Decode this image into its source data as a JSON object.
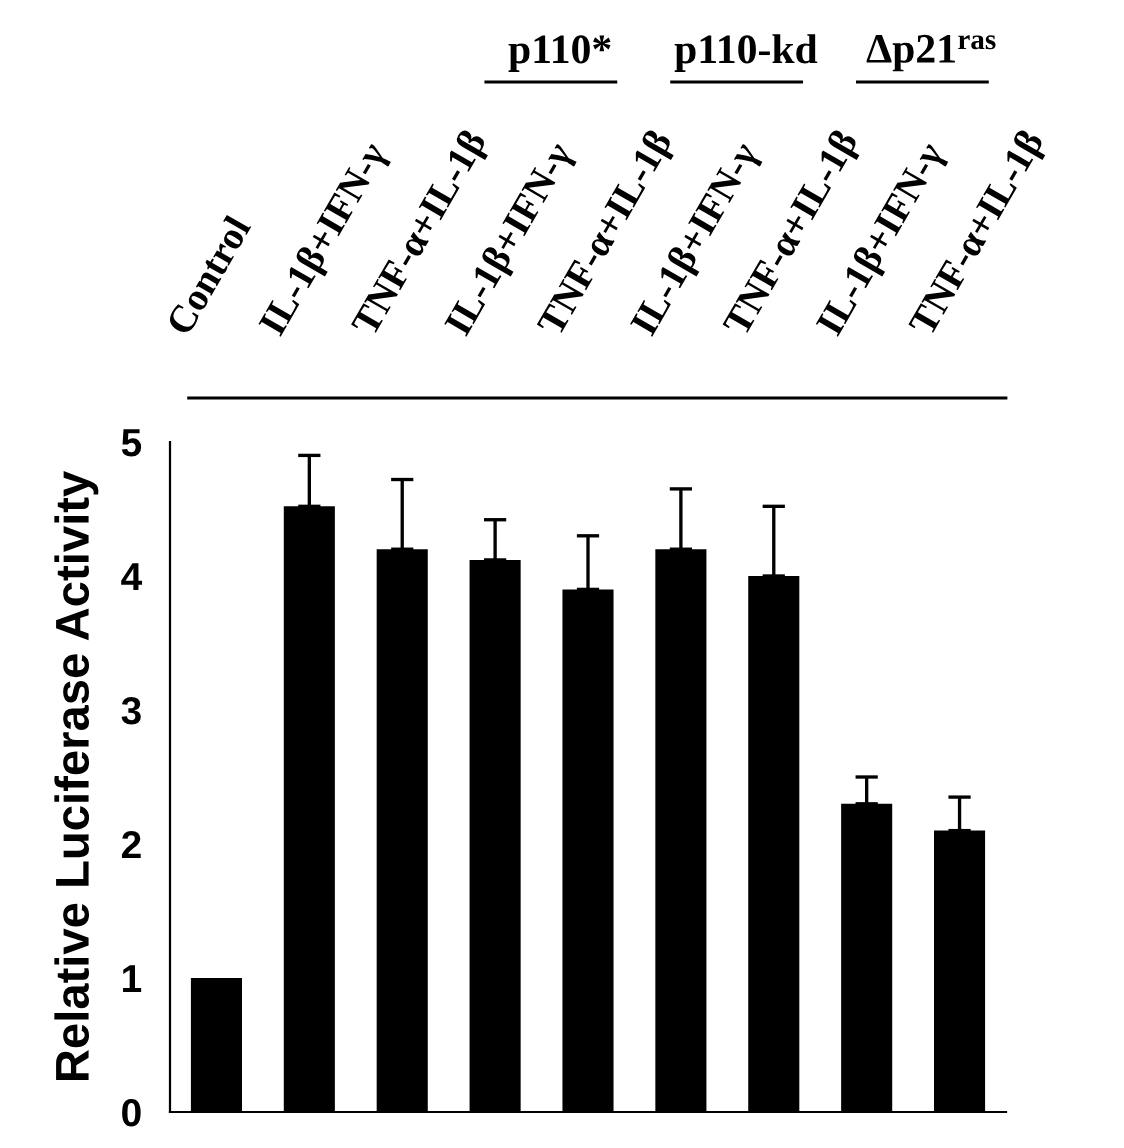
{
  "chart_data": {
    "type": "bar",
    "ylabel": "Relative Luciferase Activity",
    "categories": [
      "Control",
      "IL-1β+IFN-γ",
      "TNF-α+IL-1β",
      "IL-1β+IFN-γ",
      "TNF-α+IL-1β",
      "IL-1β+IFN-γ",
      "TNF-α+IL-1β",
      "IL-1β+IFN-γ",
      "TNF-α+IL-1β"
    ],
    "values": [
      1.0,
      4.52,
      4.2,
      4.12,
      3.9,
      4.2,
      4.0,
      2.3,
      2.1
    ],
    "errors": [
      null,
      [
        4.52,
        4.9
      ],
      [
        4.2,
        4.72
      ],
      [
        4.12,
        4.42
      ],
      [
        3.9,
        4.3
      ],
      [
        4.2,
        4.65
      ],
      [
        4.0,
        4.52
      ],
      [
        2.3,
        2.5
      ],
      [
        2.1,
        2.35
      ]
    ],
    "color": "#000000",
    "ylim": [
      0,
      5
    ],
    "yticks": [
      0,
      1,
      2,
      3,
      4,
      5
    ],
    "grid": false,
    "legend": false,
    "annotations": [
      "p110*",
      "p110-kd",
      "Δp21$^{ras}$"
    ]
  }
}
